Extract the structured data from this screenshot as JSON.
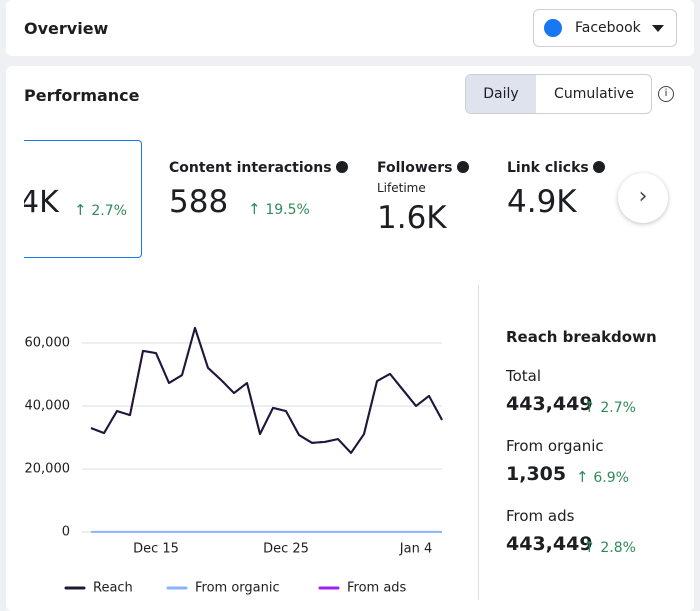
{
  "header": {
    "title": "Overview",
    "platform": "Facebook"
  },
  "performance": {
    "title": "Performance",
    "toggle": [
      "Daily",
      "Cumulative"
    ]
  },
  "metrics": [
    {
      "value": "4K",
      "change": "2.7%"
    },
    {
      "label": "Content interactions",
      "value": "588",
      "change": "19.5%"
    },
    {
      "label": "Followers",
      "sublabel": "Lifetime",
      "value": "1.6K"
    },
    {
      "label": "Link clicks",
      "value": "4.9K"
    }
  ],
  "chart_data": {
    "type": "line",
    "categories": [
      null,
      null,
      null,
      null,
      null,
      "Dec 15",
      null,
      null,
      null,
      null,
      null,
      null,
      null,
      null,
      null,
      "Dec 25",
      null,
      null,
      null,
      null,
      null,
      null,
      null,
      null,
      null,
      "Jan 4",
      null,
      null
    ],
    "series": [
      {
        "name": "Reach",
        "color": "#1c1a33",
        "values": [
          33000,
          31400,
          38400,
          37100,
          57500,
          56800,
          47300,
          49800,
          64800,
          52100,
          48300,
          44100,
          47300,
          31100,
          39400,
          38400,
          30800,
          28300,
          28600,
          29500,
          25100,
          31100,
          47900,
          50200,
          45100,
          40000,
          43200,
          35600
        ]
      },
      {
        "name": "From organic",
        "color": "#8ab4f8",
        "values": [
          47,
          47,
          47,
          47,
          47,
          47,
          47,
          47,
          47,
          47,
          47,
          47,
          47,
          47,
          47,
          47,
          47,
          47,
          47,
          47,
          47,
          47,
          47,
          47,
          47,
          47,
          47,
          47
        ]
      },
      {
        "name": "From ads",
        "color": "#a020f0",
        "values": [
          33000,
          31400,
          38400,
          37100,
          57500,
          56800,
          47300,
          49800,
          64800,
          52100,
          48300,
          44100,
          47300,
          31100,
          39400,
          38400,
          30800,
          28300,
          28600,
          29500,
          25100,
          31100,
          47900,
          50200,
          45100,
          40000,
          43200,
          35600
        ]
      }
    ],
    "ylim": [
      0,
      70000
    ],
    "yticks": [
      0,
      {
        "value": 20000,
        "label": "20,000"
      },
      {
        "value": 40000,
        "label": "40,000"
      },
      {
        "value": 60000,
        "label": "60,000"
      }
    ],
    "grid": true
  },
  "breakdown": {
    "title": "Reach breakdown",
    "items": [
      {
        "label": "Total",
        "value": "443,449",
        "change": "2.7%"
      },
      {
        "label": "From organic",
        "value": "1,305",
        "change": "6.9%"
      },
      {
        "label": "From ads",
        "value": "443,449",
        "change": "2.8%"
      }
    ]
  }
}
